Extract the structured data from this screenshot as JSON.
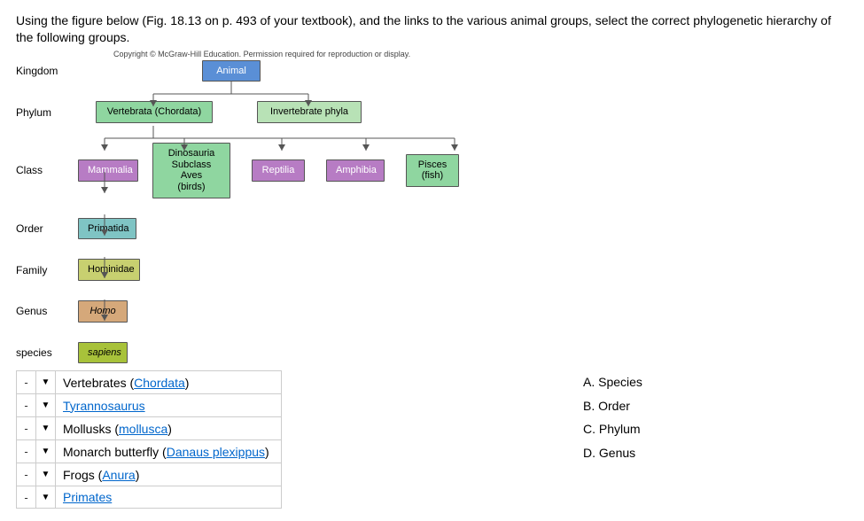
{
  "question": "Using the figure below (Fig. 18.13 on p. 493 of your textbook), and the links to the various animal groups, select the correct phylogenetic hierarchy of the following groups.",
  "copyright": "Copyright © McGraw-Hill Education. Permission required for reproduction or display.",
  "diagram": {
    "ranks": {
      "kingdom": "Kingdom",
      "phylum": "Phylum",
      "class": "Class",
      "order": "Order",
      "family": "Family",
      "genus": "Genus",
      "species": "species"
    },
    "nodes": {
      "animal": "Animal",
      "vertebrata": "Vertebrata (Chordata)",
      "invertebrate": "Invertebrate phyla",
      "mammalia": "Mammalia",
      "dinosauria1": "Dinosauria",
      "dinosauria2": "Subclass Aves",
      "dinosauria3": "(birds)",
      "reptilia": "Reptilia",
      "amphibia": "Amphibia",
      "pisces1": "Pisces",
      "pisces2": "(fish)",
      "primatida": "Primatida",
      "hominidae": "Hominidae",
      "homo": "Homo",
      "sapiens": "sapiens"
    },
    "colors": {
      "animal": "#5a8fd6",
      "vertebrata": "#8fd6a0",
      "invertebrate": "#b8e2b6",
      "mammalia": "#b77cc4",
      "dinosauria": "#8fd6a0",
      "reptilia": "#b77cc4",
      "amphibia": "#b77cc4",
      "pisces": "#8fd6a0",
      "primatida": "#7fc4c4",
      "hominidae": "#c8d070",
      "homo": "#d5a87a",
      "sapiens": "#a8c23a",
      "connector": "#555555"
    }
  },
  "matching": {
    "placeholder": "-",
    "left": [
      {
        "pre": "Vertebrates (",
        "link": "Chordata",
        "post": ")"
      },
      {
        "pre": "",
        "link": "Tyrannosaurus",
        "post": ""
      },
      {
        "pre": "Mollusks (",
        "link": "mollusca",
        "post": ")"
      },
      {
        "pre": "Monarch butterfly (",
        "link": "Danaus plexippus",
        "post": ")"
      },
      {
        "pre": "Frogs (",
        "link": "Anura",
        "post": ")"
      },
      {
        "pre": "",
        "link": "Primates",
        "post": ""
      }
    ],
    "right": [
      {
        "letter": "A.",
        "label": "Species"
      },
      {
        "letter": "B.",
        "label": "Order"
      },
      {
        "letter": "C.",
        "label": "Phylum"
      },
      {
        "letter": "D.",
        "label": "Genus"
      }
    ]
  }
}
